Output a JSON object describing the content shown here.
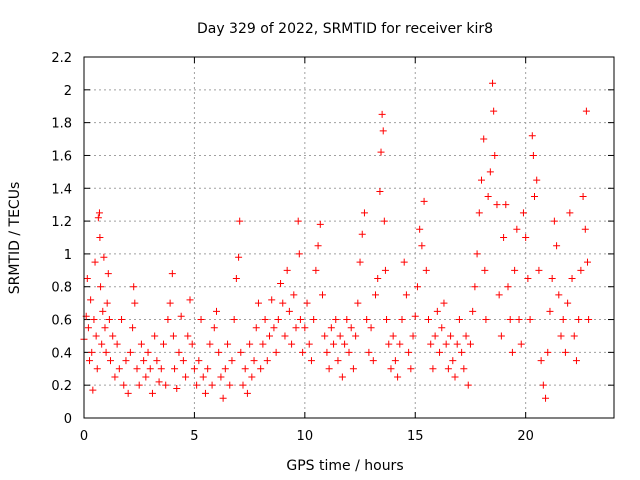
{
  "chart_data": {
    "type": "scatter",
    "title": "Day 329 of 2022, SRMTID for receiver kir8",
    "xlabel": "GPS time / hours",
    "ylabel": "SRMTID / TECUs",
    "xlim": [
      0,
      24
    ],
    "ylim": [
      0,
      2.2
    ],
    "xticks": [
      0,
      5,
      10,
      15,
      20
    ],
    "yticks": [
      0,
      0.2,
      0.4,
      0.6,
      0.8,
      1,
      1.2,
      1.4,
      1.6,
      1.8,
      2,
      2.2
    ],
    "grid": true,
    "marker": "+",
    "color": "#ff0000",
    "series": [
      {
        "name": "SRMTID",
        "points": [
          [
            0.0,
            0.48
          ],
          [
            0.1,
            0.62
          ],
          [
            0.15,
            0.85
          ],
          [
            0.2,
            0.55
          ],
          [
            0.25,
            0.35
          ],
          [
            0.3,
            0.72
          ],
          [
            0.35,
            0.4
          ],
          [
            0.4,
            0.17
          ],
          [
            0.45,
            0.6
          ],
          [
            0.5,
            0.95
          ],
          [
            0.55,
            0.5
          ],
          [
            0.6,
            0.3
          ],
          [
            0.65,
            1.22
          ],
          [
            0.7,
            1.25
          ],
          [
            0.72,
            1.1
          ],
          [
            0.75,
            0.8
          ],
          [
            0.8,
            0.45
          ],
          [
            0.85,
            0.65
          ],
          [
            0.9,
            0.98
          ],
          [
            0.95,
            0.55
          ],
          [
            1.0,
            0.4
          ],
          [
            1.05,
            0.7
          ],
          [
            1.1,
            0.88
          ],
          [
            1.15,
            0.6
          ],
          [
            1.2,
            0.35
          ],
          [
            1.3,
            0.5
          ],
          [
            1.4,
            0.25
          ],
          [
            1.5,
            0.45
          ],
          [
            1.6,
            0.3
          ],
          [
            1.7,
            0.6
          ],
          [
            1.8,
            0.2
          ],
          [
            1.9,
            0.35
          ],
          [
            2.0,
            0.15
          ],
          [
            2.1,
            0.4
          ],
          [
            2.2,
            0.55
          ],
          [
            2.25,
            0.8
          ],
          [
            2.3,
            0.7
          ],
          [
            2.4,
            0.3
          ],
          [
            2.5,
            0.2
          ],
          [
            2.6,
            0.45
          ],
          [
            2.7,
            0.35
          ],
          [
            2.8,
            0.25
          ],
          [
            2.9,
            0.4
          ],
          [
            3.0,
            0.3
          ],
          [
            3.1,
            0.15
          ],
          [
            3.2,
            0.5
          ],
          [
            3.3,
            0.35
          ],
          [
            3.4,
            0.22
          ],
          [
            3.5,
            0.3
          ],
          [
            3.6,
            0.45
          ],
          [
            3.7,
            0.2
          ],
          [
            3.8,
            0.6
          ],
          [
            3.9,
            0.7
          ],
          [
            4.0,
            0.88
          ],
          [
            4.05,
            0.5
          ],
          [
            4.1,
            0.3
          ],
          [
            4.2,
            0.18
          ],
          [
            4.3,
            0.4
          ],
          [
            4.4,
            0.62
          ],
          [
            4.5,
            0.35
          ],
          [
            4.6,
            0.25
          ],
          [
            4.7,
            0.5
          ],
          [
            4.8,
            0.72
          ],
          [
            4.9,
            0.45
          ],
          [
            5.0,
            0.3
          ],
          [
            5.1,
            0.2
          ],
          [
            5.2,
            0.35
          ],
          [
            5.3,
            0.6
          ],
          [
            5.4,
            0.25
          ],
          [
            5.5,
            0.15
          ],
          [
            5.6,
            0.3
          ],
          [
            5.7,
            0.45
          ],
          [
            5.8,
            0.2
          ],
          [
            5.9,
            0.55
          ],
          [
            6.0,
            0.65
          ],
          [
            6.1,
            0.4
          ],
          [
            6.2,
            0.25
          ],
          [
            6.3,
            0.12
          ],
          [
            6.4,
            0.3
          ],
          [
            6.5,
            0.45
          ],
          [
            6.6,
            0.2
          ],
          [
            6.7,
            0.35
          ],
          [
            6.8,
            0.6
          ],
          [
            6.9,
            0.85
          ],
          [
            7.0,
            0.98
          ],
          [
            7.05,
            1.2
          ],
          [
            7.1,
            0.4
          ],
          [
            7.2,
            0.2
          ],
          [
            7.3,
            0.3
          ],
          [
            7.4,
            0.15
          ],
          [
            7.5,
            0.45
          ],
          [
            7.6,
            0.25
          ],
          [
            7.7,
            0.35
          ],
          [
            7.8,
            0.55
          ],
          [
            7.9,
            0.7
          ],
          [
            8.0,
            0.3
          ],
          [
            8.1,
            0.45
          ],
          [
            8.2,
            0.6
          ],
          [
            8.3,
            0.35
          ],
          [
            8.4,
            0.5
          ],
          [
            8.5,
            0.72
          ],
          [
            8.6,
            0.55
          ],
          [
            8.7,
            0.4
          ],
          [
            8.8,
            0.6
          ],
          [
            8.9,
            0.82
          ],
          [
            9.0,
            0.7
          ],
          [
            9.1,
            0.5
          ],
          [
            9.2,
            0.9
          ],
          [
            9.3,
            0.65
          ],
          [
            9.4,
            0.45
          ],
          [
            9.5,
            0.75
          ],
          [
            9.6,
            0.55
          ],
          [
            9.7,
            1.2
          ],
          [
            9.75,
            1.0
          ],
          [
            9.8,
            0.6
          ],
          [
            9.9,
            0.4
          ],
          [
            10.0,
            0.55
          ],
          [
            10.1,
            0.7
          ],
          [
            10.2,
            0.45
          ],
          [
            10.3,
            0.35
          ],
          [
            10.4,
            0.6
          ],
          [
            10.5,
            0.9
          ],
          [
            10.6,
            1.05
          ],
          [
            10.7,
            1.18
          ],
          [
            10.8,
            0.75
          ],
          [
            10.9,
            0.5
          ],
          [
            11.0,
            0.4
          ],
          [
            11.1,
            0.3
          ],
          [
            11.2,
            0.55
          ],
          [
            11.3,
            0.45
          ],
          [
            11.4,
            0.6
          ],
          [
            11.5,
            0.35
          ],
          [
            11.6,
            0.5
          ],
          [
            11.7,
            0.25
          ],
          [
            11.8,
            0.45
          ],
          [
            11.9,
            0.6
          ],
          [
            12.0,
            0.4
          ],
          [
            12.1,
            0.55
          ],
          [
            12.2,
            0.3
          ],
          [
            12.3,
            0.5
          ],
          [
            12.4,
            0.7
          ],
          [
            12.5,
            0.95
          ],
          [
            12.6,
            1.12
          ],
          [
            12.7,
            1.25
          ],
          [
            12.8,
            0.6
          ],
          [
            12.9,
            0.4
          ],
          [
            13.0,
            0.55
          ],
          [
            13.1,
            0.35
          ],
          [
            13.2,
            0.75
          ],
          [
            13.3,
            0.85
          ],
          [
            13.4,
            1.38
          ],
          [
            13.45,
            1.62
          ],
          [
            13.5,
            1.85
          ],
          [
            13.55,
            1.75
          ],
          [
            13.6,
            1.2
          ],
          [
            13.65,
            0.9
          ],
          [
            13.7,
            0.6
          ],
          [
            13.8,
            0.45
          ],
          [
            13.9,
            0.3
          ],
          [
            14.0,
            0.5
          ],
          [
            14.1,
            0.35
          ],
          [
            14.2,
            0.25
          ],
          [
            14.3,
            0.45
          ],
          [
            14.4,
            0.6
          ],
          [
            14.5,
            0.95
          ],
          [
            14.6,
            0.75
          ],
          [
            14.7,
            0.4
          ],
          [
            14.8,
            0.3
          ],
          [
            14.9,
            0.5
          ],
          [
            15.0,
            0.62
          ],
          [
            15.1,
            0.8
          ],
          [
            15.2,
            1.15
          ],
          [
            15.3,
            1.05
          ],
          [
            15.4,
            1.32
          ],
          [
            15.5,
            0.9
          ],
          [
            15.6,
            0.6
          ],
          [
            15.7,
            0.45
          ],
          [
            15.8,
            0.3
          ],
          [
            15.9,
            0.5
          ],
          [
            16.0,
            0.65
          ],
          [
            16.1,
            0.4
          ],
          [
            16.2,
            0.55
          ],
          [
            16.3,
            0.7
          ],
          [
            16.4,
            0.45
          ],
          [
            16.5,
            0.3
          ],
          [
            16.6,
            0.5
          ],
          [
            16.7,
            0.35
          ],
          [
            16.8,
            0.25
          ],
          [
            16.9,
            0.45
          ],
          [
            17.0,
            0.6
          ],
          [
            17.1,
            0.4
          ],
          [
            17.2,
            0.3
          ],
          [
            17.3,
            0.5
          ],
          [
            17.4,
            0.2
          ],
          [
            17.5,
            0.45
          ],
          [
            17.6,
            0.65
          ],
          [
            17.7,
            0.8
          ],
          [
            17.8,
            1.0
          ],
          [
            17.9,
            1.25
          ],
          [
            18.0,
            1.45
          ],
          [
            18.1,
            1.7
          ],
          [
            18.15,
            0.9
          ],
          [
            18.2,
            0.6
          ],
          [
            18.3,
            1.35
          ],
          [
            18.4,
            1.5
          ],
          [
            18.5,
            2.04
          ],
          [
            18.55,
            1.87
          ],
          [
            18.6,
            1.6
          ],
          [
            18.7,
            1.3
          ],
          [
            18.8,
            0.75
          ],
          [
            18.9,
            0.5
          ],
          [
            19.0,
            1.1
          ],
          [
            19.1,
            1.3
          ],
          [
            19.2,
            0.8
          ],
          [
            19.3,
            0.6
          ],
          [
            19.4,
            0.4
          ],
          [
            19.5,
            0.9
          ],
          [
            19.6,
            1.15
          ],
          [
            19.7,
            0.6
          ],
          [
            19.8,
            0.45
          ],
          [
            19.9,
            1.25
          ],
          [
            20.0,
            1.1
          ],
          [
            20.1,
            0.85
          ],
          [
            20.2,
            0.6
          ],
          [
            20.3,
            1.72
          ],
          [
            20.35,
            1.6
          ],
          [
            20.4,
            1.35
          ],
          [
            20.5,
            1.45
          ],
          [
            20.6,
            0.9
          ],
          [
            20.7,
            0.35
          ],
          [
            20.8,
            0.2
          ],
          [
            20.9,
            0.12
          ],
          [
            21.0,
            0.4
          ],
          [
            21.1,
            0.65
          ],
          [
            21.2,
            0.85
          ],
          [
            21.3,
            1.2
          ],
          [
            21.4,
            1.05
          ],
          [
            21.5,
            0.75
          ],
          [
            21.6,
            0.5
          ],
          [
            21.7,
            0.6
          ],
          [
            21.8,
            0.4
          ],
          [
            21.9,
            0.7
          ],
          [
            22.0,
            1.25
          ],
          [
            22.1,
            0.85
          ],
          [
            22.2,
            0.5
          ],
          [
            22.3,
            0.35
          ],
          [
            22.4,
            0.6
          ],
          [
            22.5,
            0.9
          ],
          [
            22.6,
            1.35
          ],
          [
            22.7,
            1.15
          ],
          [
            22.75,
            1.87
          ],
          [
            22.8,
            0.95
          ],
          [
            22.85,
            0.6
          ]
        ]
      }
    ]
  }
}
